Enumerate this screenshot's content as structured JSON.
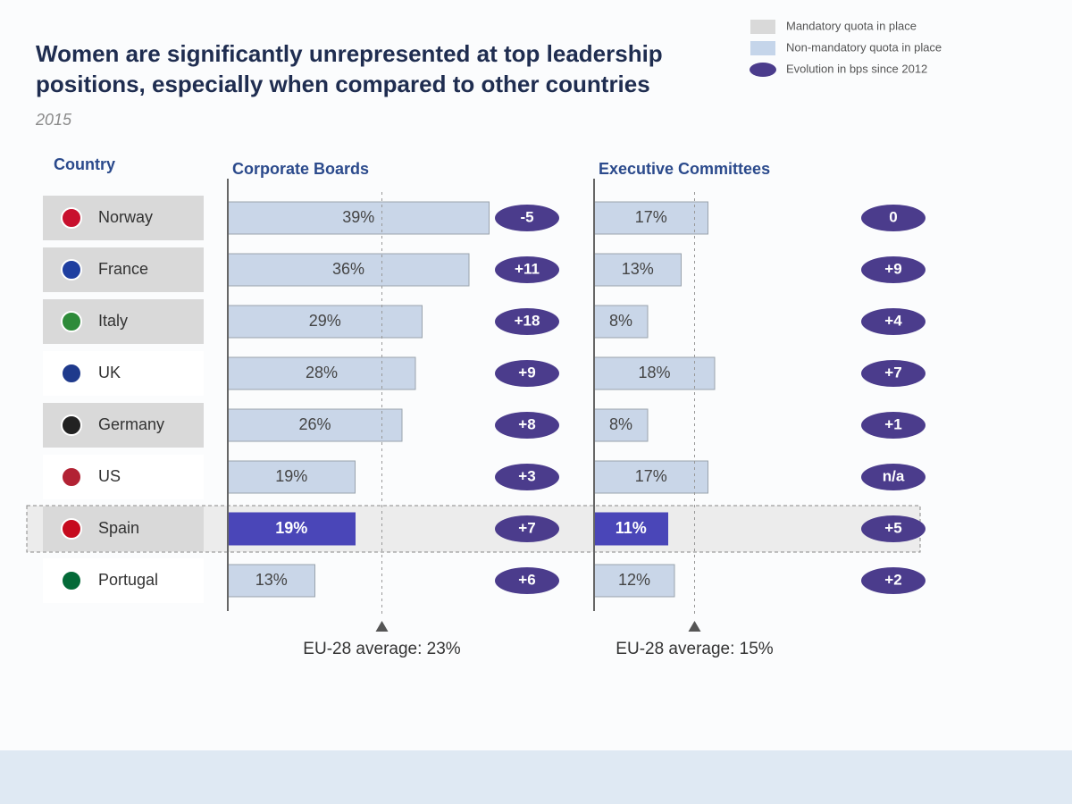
{
  "title": [
    "Women are significantly unrepresented at top leadership",
    "positions, especially when compared to other countries"
  ],
  "subtitle": "2015",
  "country_header": "Country",
  "countries": [
    "Norway",
    "France",
    "Italy",
    "UK",
    "Germany",
    "US",
    "Spain",
    "Portugal"
  ],
  "country_backgrounds": [
    "#d9d9d9",
    "#d9d9d9",
    "#d9d9d9",
    "#ffffff",
    "#d9d9d9",
    "#ffffff",
    "#d9d9d9",
    "#ffffff"
  ],
  "legend": [
    {
      "name": "Mandatory quota in place",
      "color": "#d9d9d9"
    },
    {
      "name": "Non-mandatory quota in place",
      "color": "#c5d5ea"
    },
    {
      "name": "Evolution in bps since 2012",
      "color": "#4b3c8c"
    }
  ],
  "chart_data": [
    {
      "type": "bar",
      "orientation": "horizontal",
      "title": "Corporate Boards",
      "values": [
        39,
        36,
        29,
        28,
        26,
        19,
        19,
        13
      ],
      "value_labels": [
        "39%",
        "36%",
        "29%",
        "28%",
        "26%",
        "19%",
        "19%",
        "13%"
      ],
      "colors": [
        "#c9d6e8",
        "#c9d6e8",
        "#c9d6e8",
        "#c9d6e8",
        "#c9d6e8",
        "#c9d6e8",
        "#4a46b8",
        "#c9d6e8"
      ],
      "highlight_color": "#4a46b8",
      "xlim": [
        0,
        40
      ],
      "average": {
        "value": 23,
        "label": "EU-28 average: 23%"
      },
      "evolution": {
        "color": "#4b3c8c",
        "values": [
          -5,
          11,
          18,
          9,
          8,
          3,
          7,
          6
        ],
        "value_labels": [
          "-5",
          "+11",
          "+18",
          "+9",
          "+8",
          "+3",
          "+7",
          "+6"
        ]
      }
    },
    {
      "type": "bar",
      "orientation": "horizontal",
      "title": "Executive Committees",
      "values": [
        17,
        13,
        8,
        18,
        8,
        17,
        11,
        12
      ],
      "value_labels": [
        "17%",
        "13%",
        "8%",
        "18%",
        "8%",
        "17%",
        "11%",
        "12%"
      ],
      "colors": [
        "#c9d6e8",
        "#c9d6e8",
        "#c9d6e8",
        "#c9d6e8",
        "#c9d6e8",
        "#c9d6e8",
        "#4a46b8",
        "#c9d6e8"
      ],
      "highlight_color": "#4a46b8",
      "xlim": [
        0,
        40
      ],
      "average": {
        "value": 15,
        "label": "EU-28 average: 15%"
      },
      "evolution": {
        "color": "#4b3c8c",
        "values": [
          0,
          9,
          4,
          7,
          1,
          null,
          5,
          2
        ],
        "value_labels": [
          "0",
          "+9",
          "+4",
          "+7",
          "+1",
          "n/a",
          "+5",
          "+2"
        ]
      }
    }
  ]
}
